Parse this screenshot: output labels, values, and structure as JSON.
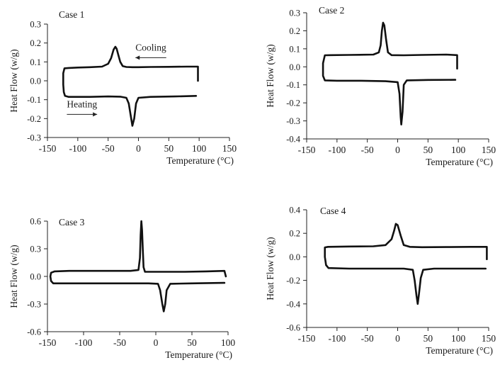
{
  "chart_data": [
    {
      "type": "line",
      "title": "Case 1",
      "xlabel": "Temperature (°C)",
      "ylabel": "Heat Flow (w/g)",
      "xlim": [
        -150,
        150
      ],
      "ylim": [
        -0.3,
        0.3
      ],
      "xticks": [
        "-150",
        "-100",
        "-50",
        "0",
        "50",
        "100",
        "150"
      ],
      "yticks": [
        "-0.3",
        "-0.2",
        "-0.1",
        "0.0",
        "0.1",
        "0.2",
        "0.3"
      ],
      "annotations": [
        {
          "text": "Cooling",
          "x": -5,
          "y": 0.16,
          "arrow": "left"
        },
        {
          "text": "Heating",
          "x": -118,
          "y": -0.14,
          "arrow": "right"
        }
      ],
      "series": [
        {
          "values": [
            [
              98,
              0.0
            ],
            [
              98,
              0.075
            ],
            [
              80,
              0.075
            ],
            [
              50,
              0.074
            ],
            [
              20,
              0.073
            ],
            [
              0,
              0.072
            ],
            [
              -10,
              0.072
            ],
            [
              -20,
              0.073
            ],
            [
              -26,
              0.078
            ],
            [
              -30,
              0.1
            ],
            [
              -33,
              0.135
            ],
            [
              -36,
              0.17
            ],
            [
              -38,
              0.18
            ],
            [
              -41,
              0.165
            ],
            [
              -45,
              0.12
            ],
            [
              -50,
              0.09
            ],
            [
              -60,
              0.075
            ],
            [
              -80,
              0.072
            ],
            [
              -100,
              0.07
            ],
            [
              -115,
              0.068
            ],
            [
              -122,
              0.066
            ],
            [
              -124,
              0.04
            ],
            [
              -124,
              -0.02
            ],
            [
              -123,
              -0.06
            ],
            [
              -121,
              -0.08
            ],
            [
              -115,
              -0.085
            ],
            [
              -80,
              -0.085
            ],
            [
              -50,
              -0.083
            ],
            [
              -30,
              -0.084
            ],
            [
              -20,
              -0.09
            ],
            [
              -16,
              -0.12
            ],
            [
              -13,
              -0.18
            ],
            [
              -10,
              -0.238
            ],
            [
              -7,
              -0.2
            ],
            [
              -4,
              -0.12
            ],
            [
              0,
              -0.09
            ],
            [
              20,
              -0.085
            ],
            [
              60,
              -0.083
            ],
            [
              95,
              -0.08
            ]
          ]
        }
      ]
    },
    {
      "type": "line",
      "title": "Case 2",
      "xlabel": "Temperature (°C)",
      "ylabel": "Heat Flow (w/g)",
      "xlim": [
        -150,
        150
      ],
      "ylim": [
        -0.4,
        0.3
      ],
      "xticks": [
        "-150",
        "-100",
        "-50",
        "0",
        "50",
        "100",
        "150"
      ],
      "yticks": [
        "-0.4",
        "-0.3",
        "-0.2",
        "-0.1",
        "0.0",
        "0.1",
        "0.2",
        "0.3"
      ],
      "series": [
        {
          "values": [
            [
              98,
              -0.01
            ],
            [
              98,
              0.065
            ],
            [
              80,
              0.068
            ],
            [
              40,
              0.066
            ],
            [
              10,
              0.064
            ],
            [
              -10,
              0.065
            ],
            [
              -16,
              0.08
            ],
            [
              -19,
              0.15
            ],
            [
              -22,
              0.23
            ],
            [
              -24,
              0.245
            ],
            [
              -26,
              0.2
            ],
            [
              -28,
              0.12
            ],
            [
              -31,
              0.08
            ],
            [
              -40,
              0.068
            ],
            [
              -80,
              0.066
            ],
            [
              -110,
              0.065
            ],
            [
              -120,
              0.064
            ],
            [
              -123,
              0.02
            ],
            [
              -123,
              -0.05
            ],
            [
              -120,
              -0.075
            ],
            [
              -100,
              -0.077
            ],
            [
              -60,
              -0.077
            ],
            [
              -20,
              -0.08
            ],
            [
              0,
              -0.085
            ],
            [
              3,
              -0.15
            ],
            [
              5,
              -0.28
            ],
            [
              6,
              -0.32
            ],
            [
              8,
              -0.25
            ],
            [
              10,
              -0.1
            ],
            [
              15,
              -0.075
            ],
            [
              50,
              -0.073
            ],
            [
              95,
              -0.072
            ]
          ]
        }
      ]
    },
    {
      "type": "line",
      "title": "Case 3",
      "xlabel": "Temperature (°C)",
      "ylabel": "Heat Flow (w/g)",
      "xlim": [
        -150,
        100
      ],
      "ylim": [
        -0.6,
        0.6
      ],
      "xticks": [
        "-150",
        "-100",
        "-50",
        "0",
        "50",
        "100"
      ],
      "yticks": [
        "-0.6",
        "-0.3",
        "0.0",
        "0.3",
        "0.6"
      ],
      "series": [
        {
          "values": [
            [
              97,
              0.0
            ],
            [
              95,
              0.06
            ],
            [
              70,
              0.055
            ],
            [
              40,
              0.05
            ],
            [
              10,
              0.05
            ],
            [
              -10,
              0.05
            ],
            [
              -15,
              0.05
            ],
            [
              -17,
              0.1
            ],
            [
              -18,
              0.3
            ],
            [
              -19,
              0.5
            ],
            [
              -20,
              0.6
            ],
            [
              -21,
              0.45
            ],
            [
              -22,
              0.2
            ],
            [
              -24,
              0.07
            ],
            [
              -35,
              0.06
            ],
            [
              -80,
              0.06
            ],
            [
              -120,
              0.06
            ],
            [
              -140,
              0.055
            ],
            [
              -145,
              0.04
            ],
            [
              -146,
              0.0
            ],
            [
              -145,
              -0.05
            ],
            [
              -142,
              -0.075
            ],
            [
              -100,
              -0.075
            ],
            [
              -50,
              -0.075
            ],
            [
              -10,
              -0.075
            ],
            [
              3,
              -0.08
            ],
            [
              6,
              -0.15
            ],
            [
              9,
              -0.3
            ],
            [
              11,
              -0.38
            ],
            [
              13,
              -0.3
            ],
            [
              15,
              -0.15
            ],
            [
              20,
              -0.08
            ],
            [
              50,
              -0.075
            ],
            [
              95,
              -0.07
            ]
          ]
        }
      ]
    },
    {
      "type": "line",
      "title": "Case 4",
      "xlabel": "Temperature (°C)",
      "ylabel": "Heat Flow (w/g)",
      "xlim": [
        -150,
        150
      ],
      "ylim": [
        -0.6,
        0.4
      ],
      "xticks": [
        "-150",
        "-100",
        "-50",
        "0",
        "50",
        "100",
        "150"
      ],
      "yticks": [
        "-0.6",
        "-0.4",
        "-0.2",
        "0.0",
        "0.2",
        "0.4"
      ],
      "series": [
        {
          "values": [
            [
              147,
              -0.02
            ],
            [
              147,
              0.085
            ],
            [
              120,
              0.085
            ],
            [
              80,
              0.083
            ],
            [
              40,
              0.082
            ],
            [
              20,
              0.085
            ],
            [
              10,
              0.1
            ],
            [
              5,
              0.18
            ],
            [
              0,
              0.27
            ],
            [
              -3,
              0.28
            ],
            [
              -6,
              0.22
            ],
            [
              -10,
              0.15
            ],
            [
              -20,
              0.1
            ],
            [
              -40,
              0.09
            ],
            [
              -80,
              0.088
            ],
            [
              -115,
              0.085
            ],
            [
              -120,
              0.08
            ],
            [
              -120,
              0.0
            ],
            [
              -118,
              -0.07
            ],
            [
              -114,
              -0.095
            ],
            [
              -80,
              -0.1
            ],
            [
              -30,
              -0.1
            ],
            [
              10,
              -0.1
            ],
            [
              25,
              -0.11
            ],
            [
              28,
              -0.2
            ],
            [
              31,
              -0.33
            ],
            [
              33,
              -0.4
            ],
            [
              35,
              -0.32
            ],
            [
              38,
              -0.18
            ],
            [
              42,
              -0.11
            ],
            [
              60,
              -0.1
            ],
            [
              145,
              -0.1
            ]
          ]
        }
      ]
    }
  ]
}
